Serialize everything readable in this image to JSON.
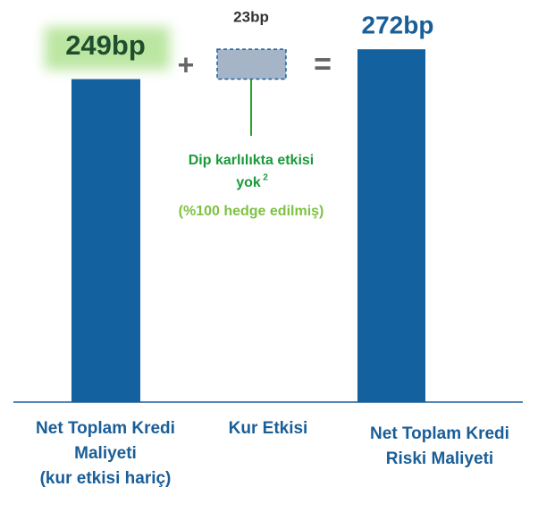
{
  "chart_data": {
    "type": "bar",
    "categories": [
      "Net Toplam Kredi\nMaliyeti\n(kur etkisi hariç)",
      "Kur Etkisi",
      "Net Toplam Kredi\nRiski Maliyeti"
    ],
    "values": [
      249,
      23,
      272
    ],
    "value_labels": [
      "249bp",
      "23bp",
      "272bp"
    ],
    "operators": [
      "+",
      "="
    ],
    "annotation": [
      "Dip karlılıkta etkisi",
      "yok",
      "2",
      "(%100 hedge edilmiş)"
    ],
    "ylim": [
      0,
      310
    ],
    "color": "#14619f"
  }
}
